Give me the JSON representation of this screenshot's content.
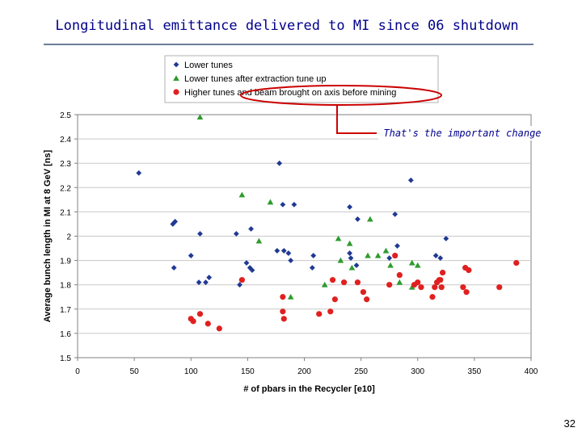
{
  "slide": {
    "title": "Longitudinal emittance delivered to MI since 06 shutdown",
    "page_number": "32"
  },
  "callout": {
    "text": "That's the important change"
  },
  "colors": {
    "lower_tunes": "#1f3a93",
    "lower_tunes_after": "#2e9b2e",
    "higher_tunes": "#e02020",
    "callout_ring": "#cc0000",
    "title": "#00008b"
  },
  "chart_data": {
    "type": "scatter",
    "xlabel": "# of pbars in the Recycler [e10]",
    "ylabel": "Average bunch length in MI at 8 GeV [ns]",
    "xlim": [
      0,
      400
    ],
    "ylim": [
      1.5,
      2.5
    ],
    "x_ticks": [
      "0",
      "50",
      "100",
      "150",
      "200",
      "250",
      "300",
      "350",
      "400"
    ],
    "y_ticks": [
      "1.5",
      "1.6",
      "1.7",
      "1.8",
      "1.9",
      "2",
      "2.1",
      "2.2",
      "2.3",
      "2.4",
      "2.5"
    ],
    "grid": "horizontal",
    "legend_position": "top",
    "series": [
      {
        "name": "Lower tunes",
        "marker": "diamond",
        "points": [
          [
            54,
            2.26
          ],
          [
            84,
            2.05
          ],
          [
            86,
            2.06
          ],
          [
            85,
            1.87
          ],
          [
            100,
            1.92
          ],
          [
            107,
            1.81
          ],
          [
            108,
            2.01
          ],
          [
            113,
            1.81
          ],
          [
            116,
            1.83
          ],
          [
            140,
            2.01
          ],
          [
            143,
            1.8
          ],
          [
            149,
            1.89
          ],
          [
            152,
            1.87
          ],
          [
            153,
            2.03
          ],
          [
            154,
            1.86
          ],
          [
            176,
            1.94
          ],
          [
            178,
            2.3
          ],
          [
            181,
            2.13
          ],
          [
            182,
            1.94
          ],
          [
            186,
            1.93
          ],
          [
            188,
            1.9
          ],
          [
            191,
            2.13
          ],
          [
            207,
            1.87
          ],
          [
            208,
            1.92
          ],
          [
            240,
            2.12
          ],
          [
            240,
            1.93
          ],
          [
            241,
            1.91
          ],
          [
            246,
            1.88
          ],
          [
            247,
            2.07
          ],
          [
            275,
            1.91
          ],
          [
            280,
            2.09
          ],
          [
            282,
            1.96
          ],
          [
            294,
            2.23
          ],
          [
            316,
            1.92
          ],
          [
            320,
            1.91
          ],
          [
            325,
            1.99
          ]
        ]
      },
      {
        "name": "Lower tunes after extraction tune up",
        "marker": "triangle",
        "points": [
          [
            108,
            2.49
          ],
          [
            145,
            2.17
          ],
          [
            160,
            1.98
          ],
          [
            170,
            2.14
          ],
          [
            188,
            1.75
          ],
          [
            218,
            1.8
          ],
          [
            230,
            1.99
          ],
          [
            232,
            1.9
          ],
          [
            240,
            1.97
          ],
          [
            242,
            1.87
          ],
          [
            256,
            1.92
          ],
          [
            258,
            2.07
          ],
          [
            265,
            1.92
          ],
          [
            272,
            1.94
          ],
          [
            276,
            1.88
          ],
          [
            284,
            1.81
          ],
          [
            295,
            1.89
          ],
          [
            295,
            1.79
          ],
          [
            300,
            1.88
          ]
        ]
      },
      {
        "name": "Higher tunes and beam brought on axis before mining",
        "marker": "circle",
        "points": [
          [
            100,
            1.66
          ],
          [
            102,
            1.65
          ],
          [
            108,
            1.68
          ],
          [
            115,
            1.64
          ],
          [
            125,
            1.62
          ],
          [
            145,
            1.82
          ],
          [
            181,
            1.75
          ],
          [
            181,
            1.69
          ],
          [
            182,
            1.66
          ],
          [
            213,
            1.68
          ],
          [
            223,
            1.69
          ],
          [
            225,
            1.82
          ],
          [
            227,
            1.74
          ],
          [
            235,
            1.81
          ],
          [
            247,
            1.81
          ],
          [
            252,
            1.77
          ],
          [
            255,
            1.74
          ],
          [
            275,
            1.8
          ],
          [
            280,
            1.92
          ],
          [
            284,
            1.84
          ],
          [
            297,
            1.8
          ],
          [
            300,
            1.81
          ],
          [
            303,
            1.79
          ],
          [
            313,
            1.75
          ],
          [
            315,
            1.79
          ],
          [
            317,
            1.81
          ],
          [
            319,
            1.82
          ],
          [
            320,
            1.82
          ],
          [
            321,
            1.79
          ],
          [
            322,
            1.85
          ],
          [
            340,
            1.79
          ],
          [
            342,
            1.87
          ],
          [
            343,
            1.77
          ],
          [
            345,
            1.86
          ],
          [
            372,
            1.79
          ],
          [
            387,
            1.89
          ]
        ]
      }
    ]
  }
}
